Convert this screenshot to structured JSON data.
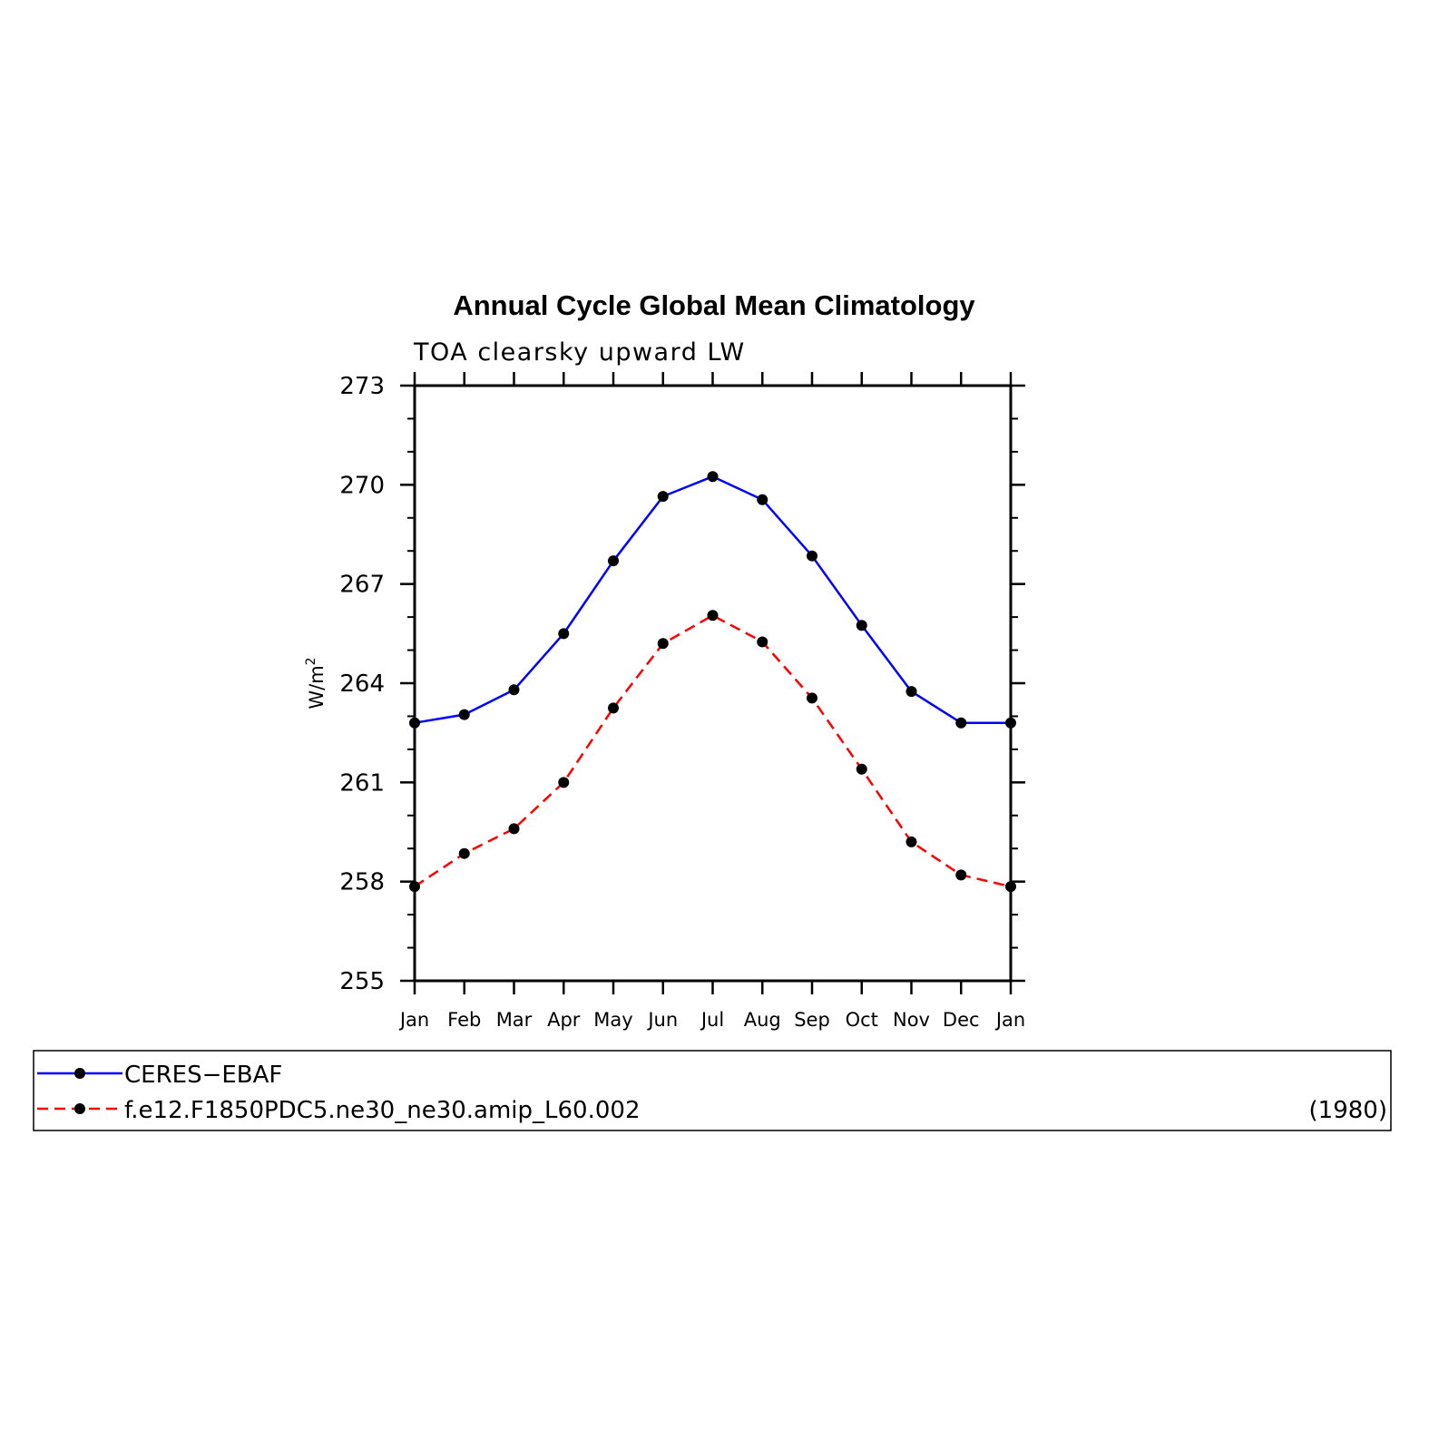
{
  "chart_data": {
    "type": "line",
    "title": "Annual Cycle Global Mean Climatology",
    "subtitle": "TOA clearsky upward LW",
    "ylabel": "W/m",
    "ylabel_superscript": "2",
    "xlabel": "",
    "categories": [
      "Jan",
      "Feb",
      "Mar",
      "Apr",
      "May",
      "Jun",
      "Jul",
      "Aug",
      "Sep",
      "Oct",
      "Nov",
      "Dec",
      "Jan"
    ],
    "yticks": [
      "255",
      "258",
      "261",
      "264",
      "267",
      "270",
      "273"
    ],
    "ylim": [
      255,
      273
    ],
    "grid": false,
    "series": [
      {
        "name": "CERES−EBAF",
        "color": "#0000ff",
        "line_style": "solid",
        "marker": "filled-circle",
        "values": [
          262.8,
          263.05,
          263.8,
          265.5,
          267.7,
          269.65,
          270.25,
          269.55,
          267.85,
          265.75,
          263.75,
          262.8,
          262.8
        ]
      },
      {
        "name": "f.e12.F1850PDC5.ne30_ne30.amip_L60.002",
        "color": "#ff0000",
        "line_style": "dashed",
        "marker": "filled-circle",
        "values": [
          257.85,
          258.85,
          259.6,
          261.0,
          263.25,
          265.2,
          266.05,
          265.25,
          263.55,
          261.4,
          259.2,
          258.2,
          257.85
        ]
      }
    ],
    "legend": {
      "placement": "below",
      "note": "(1980)"
    }
  }
}
